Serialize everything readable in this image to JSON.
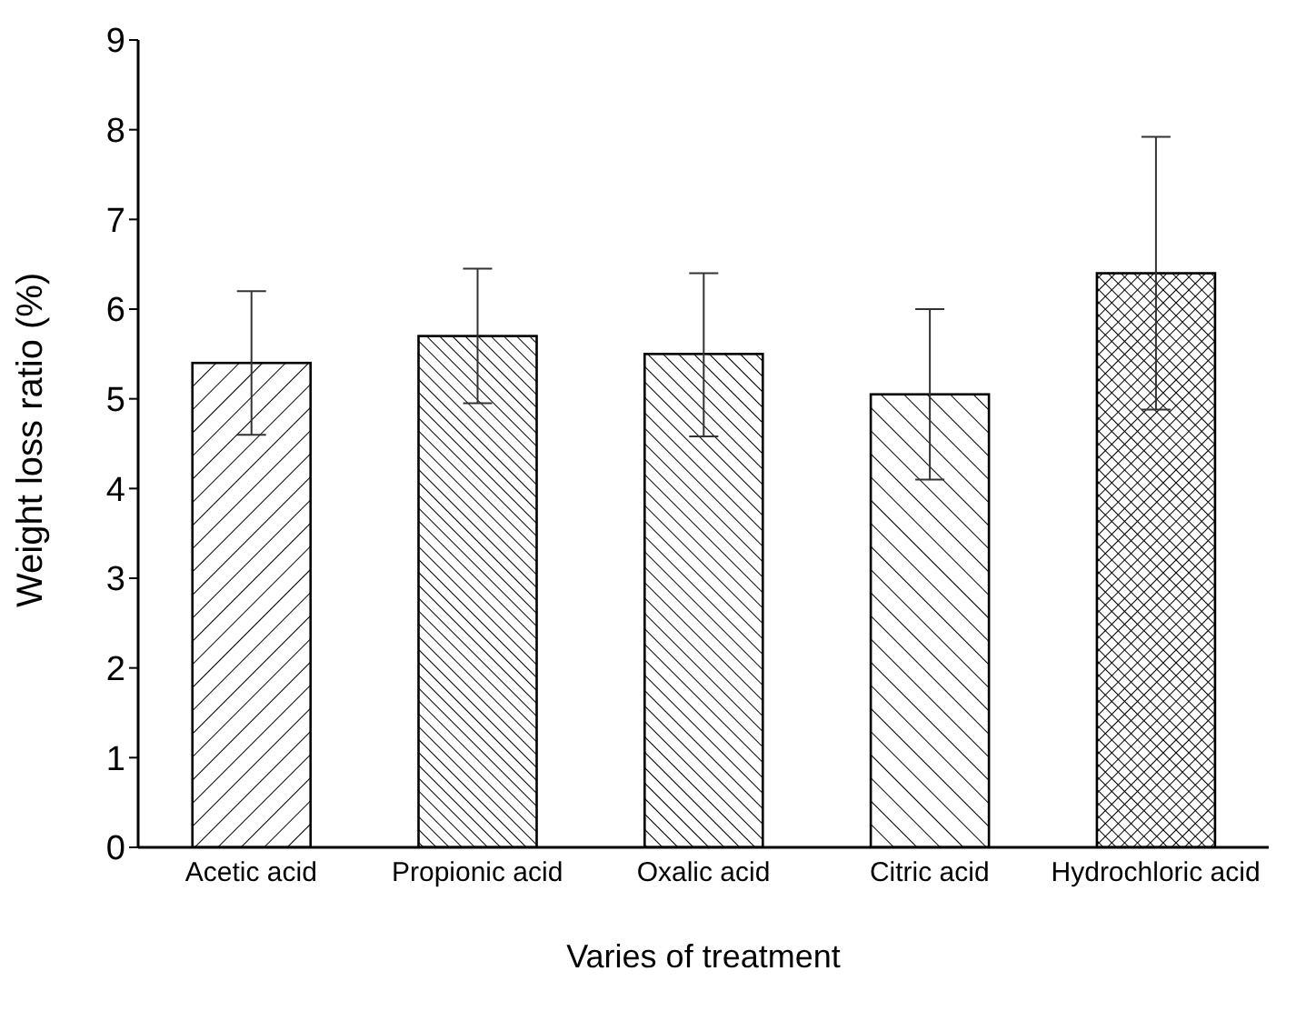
{
  "chart_data": {
    "type": "bar",
    "xlabel": "Varies of treatment",
    "ylabel": "Weight loss ratio (%)",
    "categories": [
      "Acetic acid",
      "Propionic acid",
      "Oxalic acid",
      "Citric acid",
      "Hydrochloric acid"
    ],
    "values": [
      5.4,
      5.7,
      5.5,
      5.05,
      6.4
    ],
    "errors": [
      [
        4.6,
        6.2
      ],
      [
        4.95,
        6.45
      ],
      [
        4.58,
        6.4
      ],
      [
        4.1,
        6.0
      ],
      [
        4.88,
        7.92
      ]
    ],
    "color": "#000000",
    "ylim": [
      0,
      9
    ],
    "yticks": [
      0,
      1,
      2,
      3,
      4,
      5,
      6,
      7,
      8,
      9
    ],
    "grid": false,
    "legend": false
  }
}
